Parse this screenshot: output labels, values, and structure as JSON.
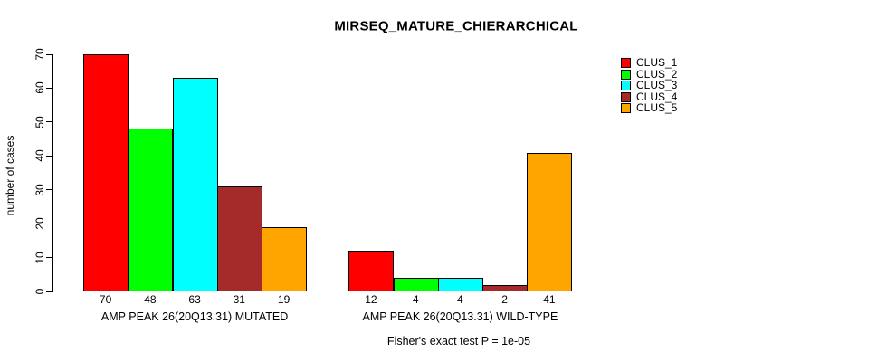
{
  "window": {
    "background": "#FFFFFF"
  },
  "chart_data": {
    "type": "bar",
    "title": "MIRSEQ_MATURE_CHIERARCHICAL",
    "ylabel": "number of cases",
    "xlabel": "",
    "ylim": [
      0,
      70
    ],
    "yticks": [
      0,
      10,
      20,
      30,
      40,
      50,
      60,
      70
    ],
    "grid": false,
    "legend_position": "right",
    "bar_value_labels": true,
    "series": [
      {
        "name": "CLUS_1",
        "color": "#FF0000"
      },
      {
        "name": "CLUS_2",
        "color": "#00FF00"
      },
      {
        "name": "CLUS_3",
        "color": "#00FFFF"
      },
      {
        "name": "CLUS_4",
        "color": "#A52A2A"
      },
      {
        "name": "CLUS_5",
        "color": "#FFA500"
      }
    ],
    "groups": [
      {
        "label": "AMP PEAK 26(20Q13.31) MUTATED",
        "values": [
          70,
          48,
          63,
          31,
          19
        ]
      },
      {
        "label": "AMP PEAK 26(20Q13.31) WILD-TYPE",
        "values": [
          12,
          4,
          4,
          2,
          41
        ]
      }
    ],
    "footer": "Fisher's exact test P = 1e-05"
  }
}
